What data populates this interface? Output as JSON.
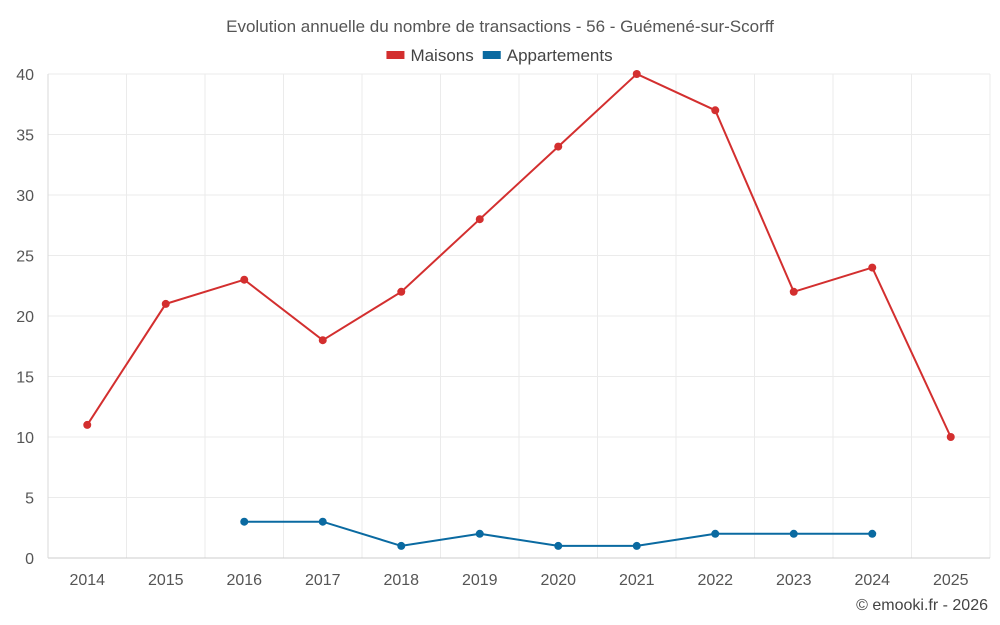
{
  "chart_data": {
    "type": "line",
    "title": "Evolution annuelle du nombre de transactions - 56 - Guémené-sur-Scorff",
    "x": [
      "2014",
      "2015",
      "2016",
      "2017",
      "2018",
      "2019",
      "2020",
      "2021",
      "2022",
      "2023",
      "2024",
      "2025"
    ],
    "series": [
      {
        "name": "Maisons",
        "color": "#d32f2f",
        "values": [
          11,
          21,
          23,
          18,
          22,
          28,
          34,
          40,
          37,
          22,
          24,
          10
        ]
      },
      {
        "name": "Appartements",
        "color": "#0a6aa1",
        "values": [
          null,
          null,
          3,
          3,
          1,
          2,
          1,
          1,
          2,
          2,
          2,
          null
        ]
      }
    ],
    "ylim": [
      0,
      40
    ],
    "yticks": [
      0,
      5,
      10,
      15,
      20,
      25,
      30,
      35,
      40
    ],
    "grid": true,
    "legend": "top-center",
    "xlabel": "",
    "ylabel": ""
  },
  "credit": "© emooki.fr - 2026"
}
